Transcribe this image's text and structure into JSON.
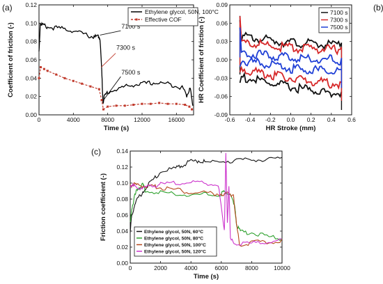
{
  "chart_data": [
    {
      "id": "a",
      "panel_label": "(a)",
      "type": "line",
      "xlabel": "Time (s)",
      "ylabel": "Coefficient of friction (-)",
      "xlim": [
        0,
        18000
      ],
      "ylim": [
        0.0,
        0.12
      ],
      "xticks": [
        0,
        4000,
        8000,
        12000,
        16000
      ],
      "xtick_labels": [
        "0",
        "4000",
        "8000",
        "12000",
        "16000"
      ],
      "yticks": [
        0.0,
        0.02,
        0.04,
        0.06,
        0.08,
        0.1,
        0.12
      ],
      "ytick_labels": [
        "0.00",
        "0.02",
        "0.04",
        "0.06",
        "0.08",
        "0.10",
        "0.12"
      ],
      "legend_position": "top-right",
      "series": [
        {
          "name": "Ethylene glycol, 50N, 100°C",
          "color": "#000000",
          "style": "solid",
          "x": [
            0,
            150,
            500,
            1000,
            2000,
            3000,
            4000,
            5000,
            6000,
            6500,
            6900,
            7100,
            7300,
            7450,
            7600,
            8000,
            9000,
            10000,
            11000,
            12000,
            13000,
            14000,
            15000,
            16000,
            16800,
            17200,
            17600,
            17900
          ],
          "y": [
            0.07,
            0.101,
            0.099,
            0.097,
            0.096,
            0.095,
            0.093,
            0.09,
            0.087,
            0.086,
            0.087,
            0.085,
            0.05,
            0.015,
            0.021,
            0.026,
            0.029,
            0.032,
            0.034,
            0.035,
            0.036,
            0.036,
            0.035,
            0.033,
            0.03,
            0.022,
            0.032,
            0.01
          ]
        },
        {
          "name": "Effective COF",
          "color": "#c0392b",
          "style": "dashed-square",
          "x": [
            0,
            200,
            600,
            1000,
            2000,
            3000,
            4000,
            5000,
            6000,
            7000,
            7300,
            7500,
            8000,
            9000,
            10000,
            11000,
            12000,
            13000,
            14000,
            15000,
            16000,
            17000,
            17500,
            17800
          ],
          "y": [
            0.04,
            0.052,
            0.05,
            0.048,
            0.044,
            0.04,
            0.037,
            0.034,
            0.031,
            0.028,
            0.016,
            0.006,
            0.009,
            0.01,
            0.01,
            0.011,
            0.012,
            0.012,
            0.013,
            0.012,
            0.012,
            0.011,
            0.009,
            0.006
          ]
        }
      ],
      "annotations": [
        {
          "text": "7100 s",
          "x": 9600,
          "y": 0.094,
          "arrow_to": [
            7100,
            0.087
          ]
        },
        {
          "text": "7300 s",
          "x": 9000,
          "y": 0.071,
          "arrow_to": [
            7250,
            0.052
          ]
        },
        {
          "text": "7500 s",
          "x": 9600,
          "y": 0.044,
          "arrow_to": [
            7500,
            0.016
          ]
        }
      ]
    },
    {
      "id": "b",
      "panel_label": "(b)",
      "type": "line",
      "xlabel": "HR Stroke (mm)",
      "ylabel": "HR Coefficient of friction (-)",
      "xlim": [
        -0.6,
        0.6
      ],
      "ylim": [
        -0.09,
        0.09
      ],
      "xticks": [
        -0.6,
        -0.4,
        -0.2,
        0.0,
        0.2,
        0.4,
        0.6
      ],
      "xtick_labels": [
        "-0.6",
        "-0.4",
        "-0.2",
        "0.0",
        "0.2",
        "0.4",
        "0.6"
      ],
      "yticks": [
        -0.09,
        -0.06,
        -0.03,
        0.0,
        0.03,
        0.06,
        0.09
      ],
      "ytick_labels": [
        "-0.09",
        "-0.06",
        "-0.03",
        "0.00",
        "0.03",
        "0.06",
        "0.09"
      ],
      "legend_position": "top-right",
      "series": [
        {
          "name": "7100 s",
          "color": "#111111",
          "upper": [
            [
              -0.5,
              0.042
            ],
            [
              -0.3,
              0.038
            ],
            [
              -0.1,
              0.034
            ],
            [
              0.1,
              0.031
            ],
            [
              0.3,
              0.029
            ],
            [
              0.5,
              0.028
            ]
          ],
          "lower": [
            [
              -0.5,
              -0.024
            ],
            [
              -0.3,
              -0.031
            ],
            [
              -0.1,
              -0.038
            ],
            [
              0.1,
              -0.043
            ],
            [
              0.3,
              -0.048
            ],
            [
              0.5,
              -0.052
            ]
          ]
        },
        {
          "name": "7300 s",
          "color": "#d62728",
          "upper": [
            [
              -0.5,
              0.033
            ],
            [
              -0.3,
              0.029
            ],
            [
              -0.1,
              0.025
            ],
            [
              0.1,
              0.022
            ],
            [
              0.3,
              0.022
            ],
            [
              0.5,
              0.021
            ]
          ],
          "lower": [
            [
              -0.5,
              -0.01
            ],
            [
              -0.3,
              -0.017
            ],
            [
              -0.1,
              -0.023
            ],
            [
              0.1,
              -0.029
            ],
            [
              0.3,
              -0.033
            ],
            [
              0.5,
              -0.037
            ]
          ]
        },
        {
          "name": "7500 s",
          "color": "#1f3fd6",
          "upper": [
            [
              -0.5,
              0.014
            ],
            [
              -0.3,
              0.012
            ],
            [
              -0.1,
              0.009
            ],
            [
              0.1,
              0.007
            ],
            [
              0.3,
              0.005
            ],
            [
              0.5,
              0.003
            ]
          ],
          "lower": [
            [
              -0.5,
              0.004
            ],
            [
              -0.3,
              -0.002
            ],
            [
              -0.1,
              -0.008
            ],
            [
              0.1,
              -0.012
            ],
            [
              0.3,
              -0.014
            ],
            [
              0.5,
              -0.016
            ]
          ]
        }
      ]
    },
    {
      "id": "c",
      "panel_label": "(c)",
      "type": "line",
      "xlabel": "Time (s)",
      "ylabel": "Friction coefficient (-)",
      "xlim": [
        0,
        10000
      ],
      "ylim": [
        0.0,
        0.14
      ],
      "xticks": [
        0,
        2000,
        4000,
        6000,
        8000,
        10000
      ],
      "xtick_labels": [
        "0",
        "2000",
        "4000",
        "6000",
        "8000",
        "10000"
      ],
      "yticks": [
        0.0,
        0.02,
        0.04,
        0.06,
        0.08,
        0.1,
        0.12,
        0.14
      ],
      "ytick_labels": [
        "0.00",
        "0.02",
        "0.04",
        "0.06",
        "0.08",
        "0.10",
        "0.12",
        "0.14"
      ],
      "legend_position": "bottom-left",
      "series": [
        {
          "name": "Ethylene glycol, 50N, 60°C",
          "color": "#111111",
          "x": [
            0,
            100,
            300,
            600,
            1000,
            1500,
            2000,
            3000,
            3500,
            4000,
            4500,
            5000,
            6000,
            7000,
            8000,
            9000,
            10000
          ],
          "y": [
            0.04,
            0.06,
            0.075,
            0.085,
            0.095,
            0.105,
            0.115,
            0.12,
            0.125,
            0.128,
            0.13,
            0.127,
            0.128,
            0.13,
            0.131,
            0.13,
            0.132
          ]
        },
        {
          "name": "Ethylene glycol, 50N, 80°C",
          "color": "#2ca02c",
          "x": [
            0,
            100,
            300,
            500,
            800,
            1000,
            2000,
            3000,
            4000,
            5000,
            6000,
            6200,
            6600,
            6900,
            7000,
            7300,
            8000,
            9000,
            10000
          ],
          "y": [
            0.05,
            0.07,
            0.085,
            0.095,
            0.1,
            0.092,
            0.09,
            0.088,
            0.087,
            0.087,
            0.088,
            0.09,
            0.088,
            0.07,
            0.05,
            0.04,
            0.04,
            0.035,
            0.031
          ]
        },
        {
          "name": "Ethylene glycol, 50N, 100°C",
          "color": "#b5471b",
          "x": [
            0,
            200,
            500,
            1000,
            1500,
            2000,
            3000,
            4000,
            5000,
            6000,
            6300,
            6800,
            7000,
            7200,
            8000,
            9000,
            10000
          ],
          "y": [
            0.098,
            0.1,
            0.099,
            0.098,
            0.097,
            0.096,
            0.093,
            0.09,
            0.089,
            0.088,
            0.088,
            0.087,
            0.05,
            0.025,
            0.027,
            0.028,
            0.03
          ]
        },
        {
          "name": "Ethylene glycol, 50N, 120°C",
          "color": "#cc33cc",
          "x": [
            0,
            200,
            500,
            1000,
            1500,
            2000,
            3000,
            4000,
            5000,
            5800,
            6200,
            6300,
            6400,
            6500,
            6600,
            7000,
            8000,
            9000,
            10000
          ],
          "y": [
            0.1,
            0.098,
            0.096,
            0.095,
            0.098,
            0.1,
            0.101,
            0.102,
            0.101,
            0.1,
            0.04,
            0.14,
            0.05,
            0.1,
            0.03,
            0.027,
            0.026,
            0.028,
            0.03
          ]
        }
      ]
    }
  ]
}
